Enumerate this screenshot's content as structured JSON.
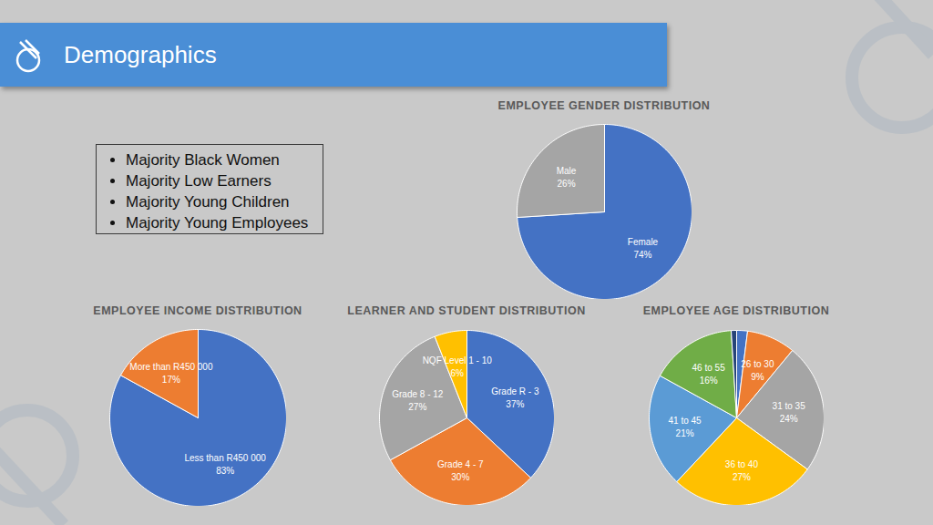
{
  "header": {
    "title": "Demographics"
  },
  "bullets": [
    "Majority Black Women",
    "Majority Low Earners",
    "Majority Young Children",
    "Majority Young Employees"
  ],
  "chart_data": [
    {
      "type": "pie",
      "title": "EMPLOYEE GENDER DISTRIBUTION",
      "categories": [
        "Female",
        "Male"
      ],
      "values": [
        74,
        26
      ],
      "value_labels": [
        "74%",
        "26%"
      ],
      "colors": [
        "#4472c4",
        "#a5a5a5"
      ],
      "data_labels": true
    },
    {
      "type": "pie",
      "title": "EMPLOYEE INCOME DISTRIBUTION",
      "categories": [
        "Less than R450 000",
        "More than R450 000"
      ],
      "values": [
        83,
        17
      ],
      "value_labels": [
        "83%",
        "17%"
      ],
      "colors": [
        "#4472c4",
        "#ed7d31"
      ],
      "data_labels": true
    },
    {
      "type": "pie",
      "title": "LEARNER AND STUDENT DISTRIBUTION",
      "categories": [
        "Grade R - 3",
        "Grade 4 - 7",
        "Grade 8 - 12",
        "NQF Level 1 - 10"
      ],
      "values": [
        37,
        30,
        27,
        6
      ],
      "value_labels": [
        "37%",
        "30%",
        "27%",
        "6%"
      ],
      "colors": [
        "#4472c4",
        "#ed7d31",
        "#a5a5a5",
        "#ffc000"
      ],
      "data_labels": true
    },
    {
      "type": "pie",
      "title": "EMPLOYEE AGE DISTRIBUTION",
      "categories": [
        null,
        "26 to 30",
        "31 to 35",
        "36 to 40",
        "41 to 45",
        "46 to 55",
        null
      ],
      "values": [
        2,
        9,
        24,
        27,
        21,
        16,
        1
      ],
      "value_labels": [
        null,
        "9%",
        "24%",
        "27%",
        "21%",
        "16%",
        null
      ],
      "colors": [
        "#4472c4",
        "#ed7d31",
        "#a5a5a5",
        "#ffc000",
        "#5b9bd5",
        "#70ad47",
        "#264478"
      ],
      "data_labels": true
    }
  ]
}
